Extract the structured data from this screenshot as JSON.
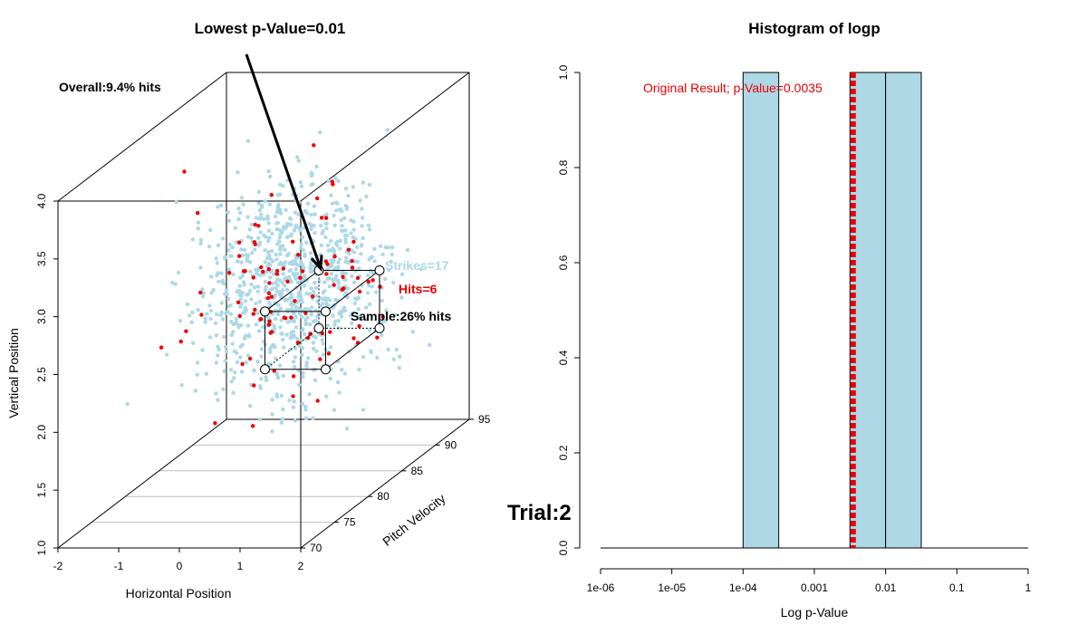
{
  "colors": {
    "strike": "#add8e6",
    "hit": "#ee0000",
    "bar": "#add8e6",
    "text_strike": "#add8e6"
  },
  "chart_data": [
    {
      "type": "scatter",
      "title": "Lowest p-Value=0.01",
      "xlabel": "Horizontal Position",
      "ylabel": "Vertical Position",
      "zlabel": "Pitch Velocity",
      "xlim": [
        -2,
        2
      ],
      "ylim": [
        1.0,
        4.0
      ],
      "zlim": [
        70,
        95
      ],
      "x_ticks": [
        "-2",
        "-1",
        "0",
        "1",
        "2"
      ],
      "y_ticks": [
        "1.0",
        "1.5",
        "2.0",
        "2.5",
        "3.0",
        "3.5",
        "4.0"
      ],
      "z_ticks": [
        "70",
        "75",
        "80",
        "85",
        "90",
        "95"
      ],
      "annotations": {
        "overall": "Overall:9.4% hits",
        "strikes": "Strikes=17",
        "hits": "Hits=6",
        "sample": "Sample:26% hits"
      },
      "series": [
        {
          "name": "Strikes",
          "approx_count": 900
        },
        {
          "name": "Hits",
          "approx_count": 95
        }
      ],
      "highlight_box": {
        "x": [
          0.3,
          1.3
        ],
        "y": [
          2.1,
          2.6
        ],
        "z": [
          80,
          88
        ]
      }
    },
    {
      "type": "bar",
      "title": "Histogram of logp",
      "xlabel": "Log p-Value",
      "ylabel": "",
      "x_scale": "log10",
      "xlim_log10": [
        -6,
        0
      ],
      "ylim": [
        0,
        1.0
      ],
      "x_ticks": [
        "1e-06",
        "1e-05",
        "1e-04",
        "0.001",
        "0.01",
        "0.1",
        "1"
      ],
      "y_ticks": [
        "0.0",
        "0.2",
        "0.4",
        "0.6",
        "0.8",
        "1.0"
      ],
      "bins_log10": [
        [
          -4.0,
          -3.5
        ],
        [
          -2.5,
          -2.0
        ],
        [
          -2.0,
          -1.5
        ]
      ],
      "values": [
        1.0,
        1.0,
        1.0
      ],
      "reference_line": {
        "value": 0.0035,
        "label": "Original Result; p-Value=0.0035"
      },
      "side_label": "Trial:2"
    }
  ]
}
